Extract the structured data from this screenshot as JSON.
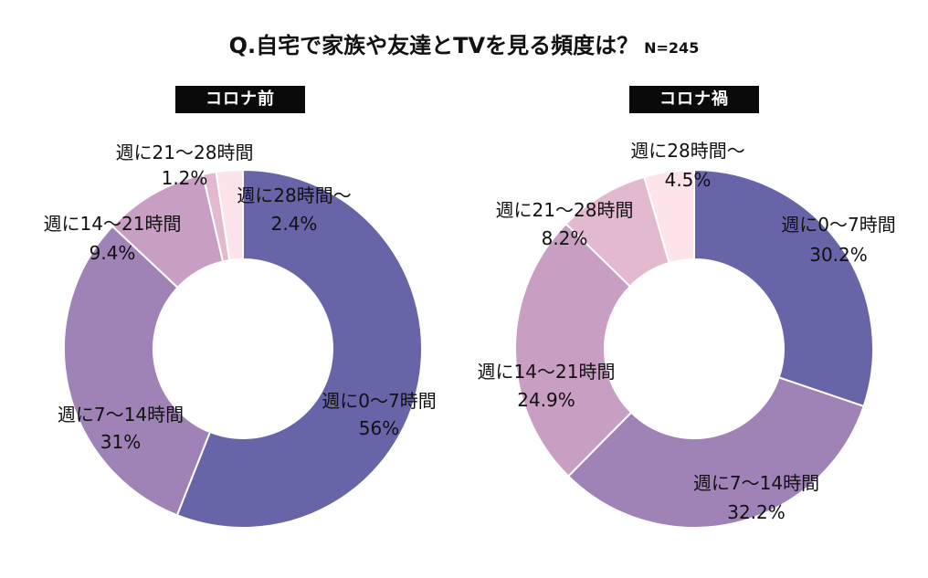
{
  "title": "Q.自宅で家族や友達とTVを見る頻度は？",
  "sample_size": "N=245",
  "chart_data": [
    {
      "type": "pie",
      "subtype": "donut",
      "title": "コロナ前",
      "categories": [
        "週に0〜7時間",
        "週に7〜14時間",
        "週に14〜21時間",
        "週に21〜28時間",
        "週に28時間〜"
      ],
      "values": [
        56,
        31,
        9.4,
        1.2,
        2.4
      ],
      "value_labels": [
        "56%",
        "31%",
        "9.4%",
        "1.2%",
        "2.4%"
      ],
      "colors": [
        "#6764a8",
        "#9f82b6",
        "#c89fc3",
        "#e3b9cf",
        "#fde3ea"
      ]
    },
    {
      "type": "pie",
      "subtype": "donut",
      "title": "コロナ禍",
      "categories": [
        "週に0〜7時間",
        "週に7〜14時間",
        "週に14〜21時間",
        "週に21〜28時間",
        "週に28時間〜"
      ],
      "values": [
        30.2,
        32.2,
        24.9,
        8.2,
        4.5
      ],
      "value_labels": [
        "30.2%",
        "32.2%",
        "24.9%",
        "8.2%",
        "4.5%"
      ],
      "colors": [
        "#6764a8",
        "#9f82b6",
        "#c89fc3",
        "#e3b9cf",
        "#fde3ea"
      ]
    }
  ]
}
